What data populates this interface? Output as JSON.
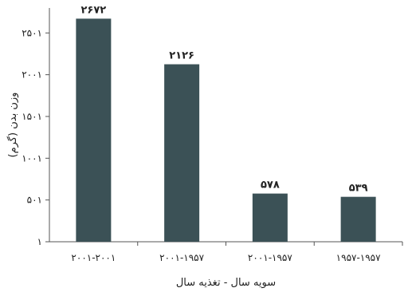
{
  "chart_data": {
    "type": "bar",
    "categories": [
      "۲۰۰۱-۲۰۰۱",
      "۲۰۰۱-۱۹۵۷",
      "۲۰۰۱-۱۹۵۷",
      "۱۹۵۷-۱۹۵۷"
    ],
    "values": [
      2672,
      2126,
      578,
      539
    ],
    "value_labels": [
      "۲۶۷۲",
      "۲۱۲۶",
      "۵۷۸",
      "۵۳۹"
    ],
    "title": "",
    "xlabel": "سویه سال - تغذیه سال",
    "ylabel": "وزن بدن (گرم)",
    "ylim": [
      1,
      2800
    ],
    "yticks": [
      1,
      501,
      1001,
      1501,
      2001,
      2501
    ],
    "ytick_labels": [
      "۱",
      "۵۰۱",
      "۱۰۰۱",
      "۱۵۰۱",
      "۲۰۰۱",
      "۲۵۰۱"
    ],
    "grid": false,
    "legend": "none",
    "bar_color": "#3b5156"
  }
}
